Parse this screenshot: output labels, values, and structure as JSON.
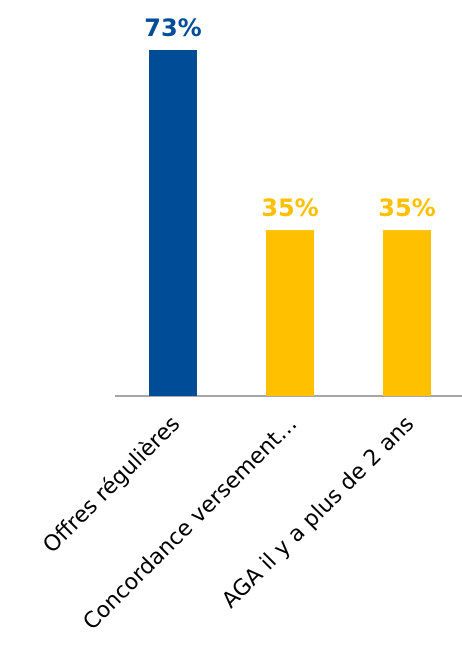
{
  "chart_data": {
    "type": "bar",
    "categories": [
      "Offres régulières",
      "Concordance versement…",
      "AGA il y a plus de 2 ans"
    ],
    "values": [
      73,
      35,
      35
    ],
    "value_labels": [
      "73%",
      "35%",
      "35%"
    ],
    "unit": "%",
    "colors": [
      "#004C97",
      "#FFC000",
      "#FFC000"
    ],
    "title": "",
    "xlabel": "",
    "ylabel": "",
    "ylim": [
      0,
      73
    ],
    "grid": false,
    "legend": "none"
  }
}
